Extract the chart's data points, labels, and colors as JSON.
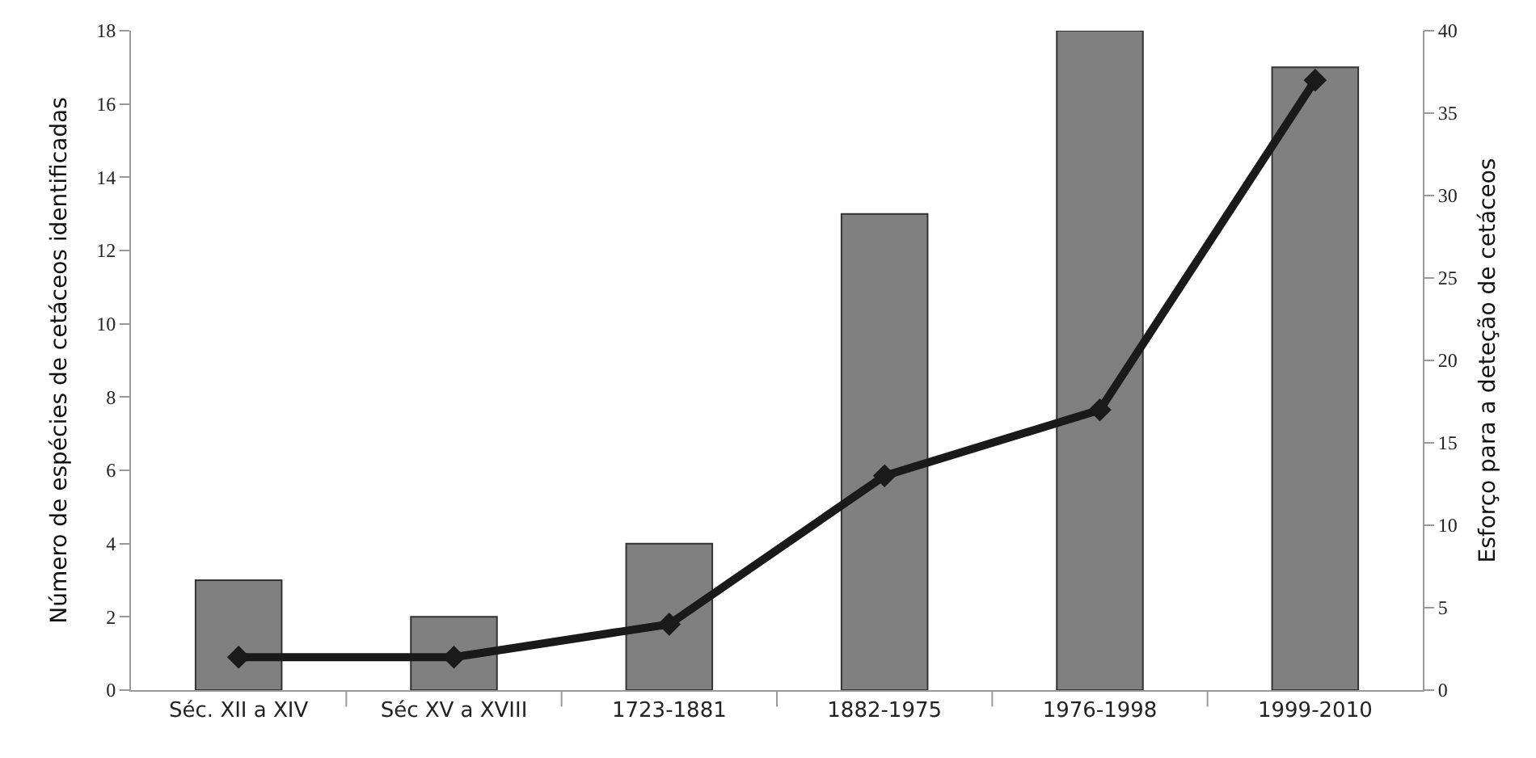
{
  "chart_data": {
    "type": "bar",
    "categories": [
      "Séc. XII a XIV",
      "Séc XV a XVIII",
      "1723-1881",
      "1882-1975",
      "1976-1998",
      "1999-2010"
    ],
    "series": [
      {
        "color": "#808080",
        "values": [
          3,
          2,
          4,
          13,
          18,
          17
        ]
      },
      {
        "type": "line",
        "axis": "y2",
        "color": "#1a1a1a",
        "marker": "diamond",
        "line_style": "solid",
        "values": [
          2,
          2,
          4,
          13,
          17,
          37
        ]
      }
    ],
    "ylabel": "Número de espécies de cetáceos identificadas",
    "y2label": "Esforço para a deteção de cetáceos",
    "ylim": [
      0,
      18
    ],
    "yticks": [
      0,
      2,
      4,
      6,
      8,
      10,
      12,
      14,
      16,
      18
    ],
    "y2lim": [
      0,
      40
    ],
    "y2ticks": [
      0,
      5,
      10,
      15,
      20,
      25,
      30,
      35,
      40
    ]
  }
}
